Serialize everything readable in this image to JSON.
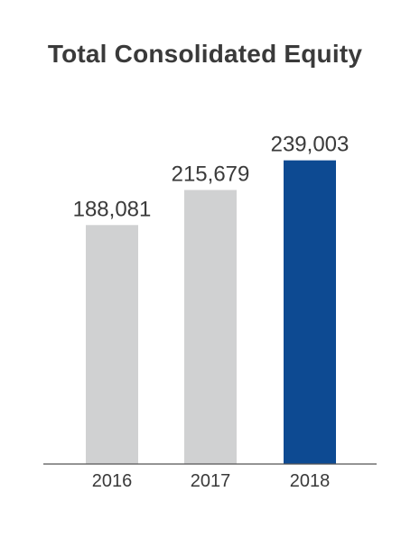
{
  "chart_data": {
    "type": "bar",
    "title": "Total Consolidated Equity",
    "categories": [
      "2016",
      "2017",
      "2018"
    ],
    "values": [
      188081,
      215679,
      239003
    ],
    "value_labels": [
      "188,081",
      "215,679",
      "239,003"
    ],
    "xlabel": "",
    "ylabel": "",
    "ylim": [
      0,
      270000
    ],
    "grid": false,
    "legend": "none",
    "colors": {
      "default_bar": "#d0d1d2",
      "highlight_bar": "#0d4a92",
      "axis": "#555555",
      "text": "#3a3a3a"
    },
    "highlight_index": 2
  }
}
